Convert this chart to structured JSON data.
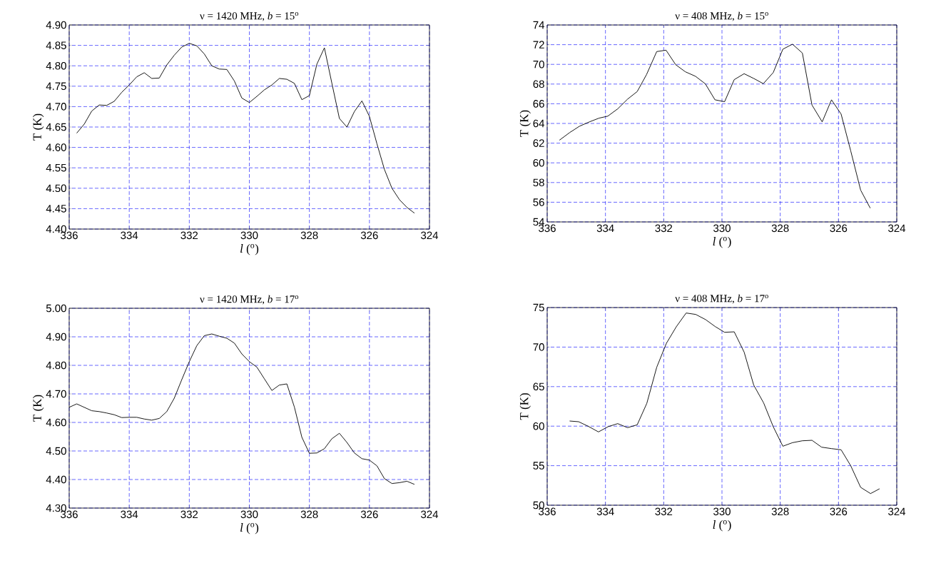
{
  "chart_data": [
    {
      "type": "line",
      "title": "ν = 1420 MHz,   *b* = 15$^{o}$",
      "xlabel": "*l* ($^{o}$)",
      "ylabel": "T (K)",
      "color": "#000000",
      "grid": true,
      "xlim": [
        336,
        324
      ],
      "xticks": [
        336,
        334,
        332,
        330,
        328,
        326,
        324
      ],
      "ylim": [
        4.4,
        4.9
      ],
      "yticks": [
        {
          "value": 4.4,
          "label": "4.40"
        },
        4.45,
        {
          "value": 4.5,
          "label": "4.50"
        },
        4.55,
        {
          "value": 4.6,
          "label": "4.60"
        },
        4.65,
        {
          "value": 4.7,
          "label": "4.70"
        },
        4.75,
        {
          "value": 4.8,
          "label": "4.80"
        },
        4.85,
        {
          "value": 4.9,
          "label": "4.90"
        }
      ],
      "x": [
        335.75,
        335.5,
        335.25,
        335.0,
        334.75,
        334.5,
        334.25,
        334.0,
        333.75,
        333.5,
        333.25,
        333.0,
        332.75,
        332.5,
        332.25,
        332.0,
        331.75,
        331.5,
        331.25,
        331.0,
        330.75,
        330.5,
        330.25,
        330.0,
        329.75,
        329.5,
        329.25,
        329.0,
        328.75,
        328.5,
        328.25,
        328.0,
        327.75,
        327.5,
        327.25,
        327.0,
        326.75,
        326.5,
        326.25,
        326.0,
        325.75,
        325.5,
        325.25,
        325.0,
        324.75,
        324.5
      ],
      "values": [
        4.635,
        4.657,
        4.689,
        4.704,
        4.703,
        4.713,
        4.735,
        4.753,
        4.773,
        4.783,
        4.769,
        4.77,
        4.802,
        4.826,
        4.846,
        4.855,
        4.849,
        4.829,
        4.8,
        4.792,
        4.791,
        4.763,
        4.721,
        4.71,
        4.725,
        4.741,
        4.753,
        4.769,
        4.767,
        4.757,
        4.717,
        4.727,
        4.804,
        4.844,
        4.757,
        4.671,
        4.65,
        4.688,
        4.714,
        4.676,
        4.609,
        4.546,
        4.5,
        4.472,
        4.453,
        4.439
      ]
    },
    {
      "type": "line",
      "title": "ν = 408 MHz,   *b* = 15$^{o}$",
      "xlabel": "*l* ($^{o}$)",
      "ylabel": "T (K)",
      "color": "#000000",
      "grid": true,
      "xlim": [
        336,
        324
      ],
      "xticks": [
        336,
        334,
        332,
        330,
        328,
        326,
        324
      ],
      "ylim": [
        54,
        74
      ],
      "yticks": [
        54,
        56,
        58,
        60,
        62,
        64,
        66,
        68,
        70,
        72,
        74
      ],
      "x": [
        335.58,
        335.23,
        334.89,
        334.55,
        334.22,
        333.92,
        333.58,
        333.24,
        332.91,
        332.59,
        332.24,
        331.92,
        331.59,
        331.26,
        330.91,
        330.57,
        330.24,
        329.91,
        329.58,
        329.24,
        328.91,
        328.58,
        328.24,
        327.91,
        327.58,
        327.24,
        326.91,
        326.56,
        326.24,
        325.91,
        325.58,
        325.24,
        324.91
      ],
      "values": [
        62.3,
        63.07,
        63.72,
        64.16,
        64.54,
        64.74,
        65.48,
        66.47,
        67.24,
        68.96,
        71.3,
        71.44,
        69.97,
        69.25,
        68.79,
        68.02,
        66.4,
        66.21,
        68.45,
        69.05,
        68.57,
        68.04,
        69.17,
        71.54,
        72.05,
        71.15,
        65.87,
        64.16,
        66.4,
        64.95,
        61.21,
        57.23,
        55.4
      ]
    },
    {
      "type": "line",
      "title": "ν = 1420 MHz,   *b* = 17$^{o}$",
      "xlabel": "*l* ($^{o}$)",
      "ylabel": "T (K)",
      "color": "#000000",
      "grid": true,
      "xlim": [
        336,
        324
      ],
      "xticks": [
        336,
        334,
        332,
        330,
        328,
        326,
        324
      ],
      "ylim": [
        4.3,
        5.0
      ],
      "yticks": [
        {
          "value": 4.3,
          "label": "4.30"
        },
        {
          "value": 4.4,
          "label": "4.40"
        },
        {
          "value": 4.5,
          "label": "4.50"
        },
        {
          "value": 4.6,
          "label": "4.60"
        },
        {
          "value": 4.7,
          "label": "4.70"
        },
        {
          "value": 4.8,
          "label": "4.80"
        },
        {
          "value": 4.9,
          "label": "4.90"
        },
        {
          "value": 5.0,
          "label": "5.00"
        }
      ],
      "x": [
        336.0,
        335.75,
        335.5,
        335.25,
        335.0,
        334.75,
        334.5,
        334.25,
        334.0,
        333.75,
        333.5,
        333.25,
        333.0,
        332.75,
        332.5,
        332.25,
        332.0,
        331.75,
        331.5,
        331.25,
        331.0,
        330.75,
        330.5,
        330.25,
        330.0,
        329.75,
        329.5,
        329.25,
        329.0,
        328.75,
        328.5,
        328.25,
        328.0,
        327.75,
        327.5,
        327.25,
        327.0,
        326.75,
        326.5,
        326.25,
        326.0,
        325.75,
        325.5,
        325.25,
        325.0,
        324.75,
        324.5
      ],
      "values": [
        4.653,
        4.665,
        4.653,
        4.641,
        4.638,
        4.633,
        4.627,
        4.617,
        4.618,
        4.618,
        4.612,
        4.608,
        4.614,
        4.638,
        4.685,
        4.75,
        4.813,
        4.869,
        4.904,
        4.91,
        4.902,
        4.895,
        4.878,
        4.84,
        4.813,
        4.794,
        4.753,
        4.712,
        4.731,
        4.735,
        4.654,
        4.548,
        4.492,
        4.493,
        4.508,
        4.543,
        4.562,
        4.53,
        4.493,
        4.473,
        4.468,
        4.448,
        4.403,
        4.386,
        4.389,
        4.394,
        4.383
      ]
    },
    {
      "type": "line",
      "title": "ν = 408 MHz,   *b* = 17$^{o}$",
      "xlabel": "*l* ($^{o}$)",
      "ylabel": "T (K)",
      "color": "#000000",
      "grid": true,
      "xlim": [
        336,
        324
      ],
      "xticks": [
        336,
        334,
        332,
        330,
        328,
        326,
        324
      ],
      "ylim": [
        50,
        75
      ],
      "yticks": [
        50,
        55,
        60,
        65,
        70,
        75
      ],
      "x": [
        335.23,
        334.92,
        334.58,
        334.24,
        333.91,
        333.58,
        333.24,
        332.91,
        332.58,
        332.24,
        331.91,
        331.57,
        331.23,
        330.9,
        330.56,
        330.23,
        329.91,
        329.58,
        329.24,
        328.91,
        328.57,
        328.24,
        327.91,
        327.58,
        327.24,
        326.91,
        326.58,
        326.24,
        325.91,
        325.58,
        325.24,
        324.9,
        324.59
      ],
      "values": [
        60.65,
        60.56,
        59.96,
        59.27,
        59.93,
        60.32,
        59.81,
        60.17,
        62.88,
        67.45,
        70.46,
        72.56,
        74.31,
        74.13,
        73.47,
        72.59,
        71.87,
        71.93,
        69.37,
        65.19,
        62.94,
        59.93,
        57.46,
        57.91,
        58.15,
        58.21,
        57.34,
        57.16,
        57.01,
        54.99,
        52.26,
        51.47,
        52.08
      ]
    }
  ]
}
